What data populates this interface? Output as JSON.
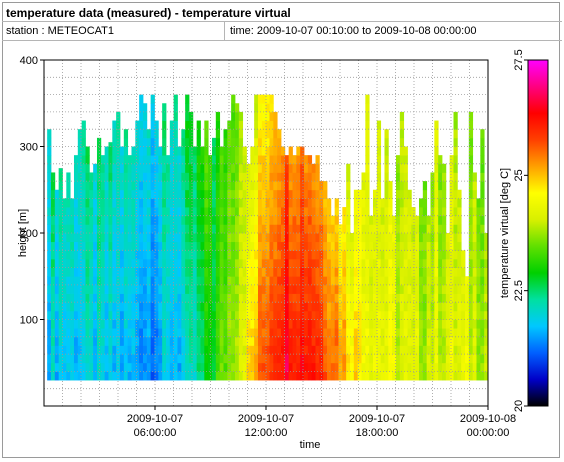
{
  "header": {
    "title": "temperature data (measured) - temperature virtual",
    "station": "station : METEOCAT1",
    "time_range": "time: 2009-10-07 00:10:00 to 2009-10-08 00:00:00"
  },
  "chart_data": {
    "type": "heatmap",
    "xlabel": "time",
    "ylabel": "height [m]",
    "x_ticks": [
      {
        "line1": "2009-10-07",
        "line2": "06:00:00",
        "hours": 6
      },
      {
        "line1": "2009-10-07",
        "line2": "12:00:00",
        "hours": 12
      },
      {
        "line1": "2009-10-07",
        "line2": "18:00:00",
        "hours": 18
      },
      {
        "line1": "2009-10-08",
        "line2": "00:00:00",
        "hours": 24
      }
    ],
    "x_range_hours": [
      0.17,
      24
    ],
    "ylim": [
      0,
      400
    ],
    "y_ticks": [
      100,
      200,
      300,
      400
    ],
    "data_height_range": [
      30,
      370
    ],
    "grid": true,
    "colorbar": {
      "label": "temperature virtual [deg C]",
      "range": [
        20,
        27.5
      ],
      "ticks": [
        "20",
        "22.5",
        "25",
        "27.5"
      ],
      "colormap": [
        "#000000",
        "#0000c8",
        "#0060ff",
        "#00c8ff",
        "#00e0a0",
        "#00d000",
        "#60e000",
        "#d8f000",
        "#ffff00",
        "#ffa000",
        "#ff4000",
        "#ff0000",
        "#ff0080",
        "#ff00ff"
      ]
    },
    "profile_tops_m": [
      320,
      270,
      250,
      275,
      240,
      270,
      240,
      290,
      320,
      330,
      300,
      270,
      280,
      310,
      290,
      300,
      305,
      330,
      340,
      300,
      320,
      290,
      300,
      330,
      360,
      350,
      320,
      360,
      330,
      300,
      350,
      290,
      330,
      360,
      300,
      320,
      360,
      340,
      300,
      330,
      300,
      330,
      290,
      310,
      340,
      300,
      320,
      330,
      360,
      350,
      340,
      300,
      280,
      300,
      360,
      360,
      360,
      360,
      360,
      340,
      320,
      300,
      290,
      300,
      290,
      300,
      300,
      290,
      290,
      280,
      290,
      260,
      260,
      240,
      220,
      240,
      210,
      230,
      280,
      200,
      250,
      250,
      270,
      360,
      220,
      250,
      330,
      240,
      320,
      260,
      220,
      290,
      340,
      300,
      250,
      230,
      220,
      240,
      260,
      220,
      270,
      330,
      290,
      280,
      200,
      290,
      340,
      250,
      180,
      150,
      340,
      270,
      240,
      320,
      200
    ],
    "temperature_profile": {
      "morning_deg_c": [
        21.2,
        23.2
      ],
      "noon_peak_deg_c": [
        26.8,
        25.4
      ],
      "evening_deg_c": [
        24.2,
        24.0
      ]
    }
  }
}
